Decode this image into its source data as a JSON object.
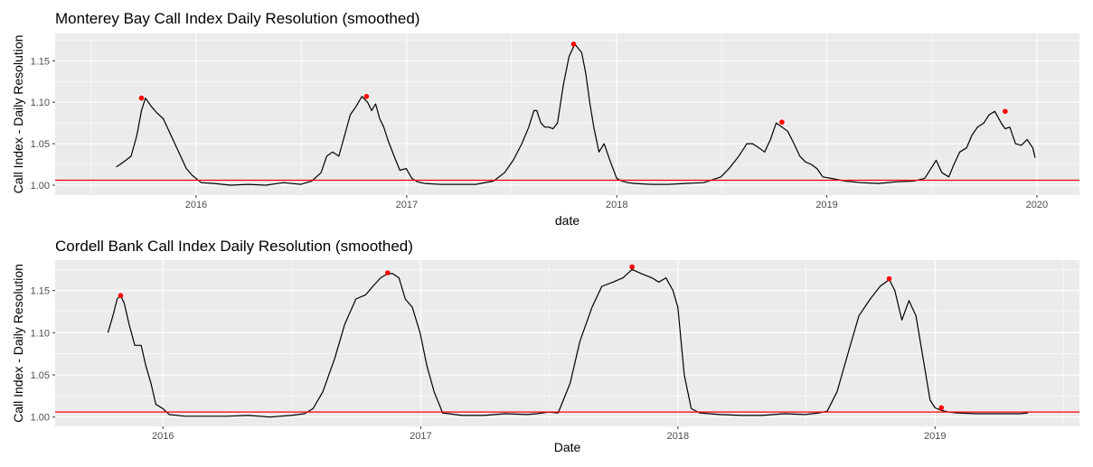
{
  "chart_data": [
    {
      "type": "line",
      "title": "Monterey Bay Call Index Daily Resolution (smoothed)",
      "xlabel": "date",
      "ylabel": "Call Index - Daily Resolution",
      "x_ticks": [
        "2016",
        "2017",
        "2018",
        "2019",
        "2020"
      ],
      "y_ticks": [
        "1.00",
        "1.05",
        "1.10",
        "1.15"
      ],
      "xlim": [
        "2015-05-01",
        "2020-03-15"
      ],
      "ylim": [
        0.988,
        1.183
      ],
      "reference_line": 1.006,
      "series": [
        {
          "color": "#000000",
          "x": [
            "2015-08-15",
            "2015-08-22",
            "2015-09-01",
            "2015-09-10",
            "2015-09-20",
            "2015-09-28",
            "2015-10-05",
            "2015-10-15",
            "2015-10-25",
            "2015-11-05",
            "2015-11-15",
            "2015-11-25",
            "2015-12-05",
            "2015-12-15",
            "2015-12-25",
            "2016-01-10",
            "2016-02-01",
            "2016-03-01",
            "2016-04-01",
            "2016-05-01",
            "2016-06-01",
            "2016-07-01",
            "2016-07-20",
            "2016-08-05",
            "2016-08-15",
            "2016-08-25",
            "2016-09-05",
            "2016-09-15",
            "2016-09-25",
            "2016-10-05",
            "2016-10-15",
            "2016-10-25",
            "2016-11-01",
            "2016-11-08",
            "2016-11-15",
            "2016-11-22",
            "2016-11-29",
            "2016-12-10",
            "2016-12-20",
            "2016-12-31",
            "2017-01-10",
            "2017-01-20",
            "2017-02-01",
            "2017-03-01",
            "2017-04-01",
            "2017-05-01",
            "2017-06-01",
            "2017-06-20",
            "2017-07-05",
            "2017-07-20",
            "2017-08-01",
            "2017-08-10",
            "2017-08-15",
            "2017-08-22",
            "2017-08-29",
            "2017-09-05",
            "2017-09-12",
            "2017-09-20",
            "2017-09-30",
            "2017-10-10",
            "2017-10-20",
            "2017-11-01",
            "2017-11-08",
            "2017-11-15",
            "2017-11-22",
            "2017-12-01",
            "2017-12-10",
            "2017-12-20",
            "2018-01-01",
            "2018-01-10",
            "2018-01-20",
            "2018-02-01",
            "2018-03-01",
            "2018-04-01",
            "2018-05-01",
            "2018-06-01",
            "2018-07-01",
            "2018-07-15",
            "2018-08-01",
            "2018-08-15",
            "2018-08-25",
            "2018-09-05",
            "2018-09-15",
            "2018-09-25",
            "2018-10-05",
            "2018-10-15",
            "2018-10-25",
            "2018-11-05",
            "2018-11-15",
            "2018-11-25",
            "2018-12-05",
            "2018-12-15",
            "2018-12-25",
            "2019-01-10",
            "2019-02-01",
            "2019-03-01",
            "2019-04-01",
            "2019-05-01",
            "2019-06-01",
            "2019-06-20",
            "2019-07-01",
            "2019-07-10",
            "2019-07-20",
            "2019-08-01",
            "2019-08-10",
            "2019-08-20",
            "2019-09-01",
            "2019-09-10",
            "2019-09-20",
            "2019-10-01",
            "2019-10-10",
            "2019-10-20",
            "2019-10-31",
            "2019-11-07",
            "2019-11-15",
            "2019-11-25",
            "2019-12-05",
            "2019-12-15",
            "2019-12-25",
            "2019-12-29"
          ],
          "y": [
            1.022,
            1.025,
            1.03,
            1.035,
            1.06,
            1.09,
            1.105,
            1.095,
            1.087,
            1.08,
            1.065,
            1.05,
            1.035,
            1.02,
            1.012,
            1.003,
            1.002,
            1.0,
            1.001,
            1.0,
            1.003,
            1.001,
            1.005,
            1.015,
            1.035,
            1.04,
            1.035,
            1.06,
            1.085,
            1.095,
            1.107,
            1.1,
            1.09,
            1.098,
            1.08,
            1.07,
            1.055,
            1.035,
            1.018,
            1.02,
            1.008,
            1.004,
            1.002,
            1.001,
            1.001,
            1.001,
            1.005,
            1.015,
            1.03,
            1.05,
            1.07,
            1.09,
            1.09,
            1.075,
            1.07,
            1.07,
            1.068,
            1.075,
            1.12,
            1.155,
            1.17,
            1.16,
            1.135,
            1.1,
            1.07,
            1.04,
            1.05,
            1.03,
            1.008,
            1.005,
            1.003,
            1.002,
            1.001,
            1.001,
            1.002,
            1.003,
            1.01,
            1.02,
            1.035,
            1.05,
            1.05,
            1.045,
            1.04,
            1.055,
            1.075,
            1.07,
            1.065,
            1.05,
            1.035,
            1.028,
            1.025,
            1.02,
            1.01,
            1.008,
            1.005,
            1.003,
            1.002,
            1.004,
            1.005,
            1.008,
            1.02,
            1.03,
            1.015,
            1.01,
            1.025,
            1.04,
            1.045,
            1.06,
            1.07,
            1.075,
            1.085,
            1.089,
            1.075,
            1.068,
            1.07,
            1.05,
            1.048,
            1.055,
            1.045,
            1.033
          ]
        }
      ],
      "peaks": {
        "color": "#ff0000",
        "x": [
          "2015-09-28",
          "2016-10-23",
          "2017-10-18",
          "2018-10-15",
          "2019-11-07"
        ],
        "y": [
          1.105,
          1.107,
          1.17,
          1.076,
          1.089
        ]
      }
    },
    {
      "type": "line",
      "title": "Cordell Bank Call Index Daily Resolution (smoothed)",
      "xlabel": "Date",
      "ylabel": "Call Index - Daily Resolution",
      "x_ticks": [
        "2016",
        "2017",
        "2018",
        "2019"
      ],
      "y_ticks": [
        "1.00",
        "1.05",
        "1.10",
        "1.15"
      ],
      "xlim": [
        "2015-08-01",
        "2019-07-25"
      ],
      "ylim": [
        0.989,
        1.186
      ],
      "reference_line": 1.006,
      "series": [
        {
          "color": "#000000",
          "x": [
            "2015-10-15",
            "2015-10-22",
            "2015-10-28",
            "2015-11-02",
            "2015-11-07",
            "2015-11-14",
            "2015-11-22",
            "2015-12-01",
            "2015-12-08",
            "2015-12-15",
            "2015-12-22",
            "2016-01-01",
            "2016-01-10",
            "2016-02-01",
            "2016-03-01",
            "2016-04-01",
            "2016-05-01",
            "2016-06-01",
            "2016-07-01",
            "2016-07-20",
            "2016-08-01",
            "2016-08-15",
            "2016-09-01",
            "2016-09-15",
            "2016-10-01",
            "2016-10-15",
            "2016-10-25",
            "2016-11-05",
            "2016-11-15",
            "2016-11-22",
            "2016-12-01",
            "2016-12-10",
            "2016-12-20",
            "2016-12-31",
            "2017-01-10",
            "2017-01-20",
            "2017-02-01",
            "2017-03-01",
            "2017-04-01",
            "2017-05-01",
            "2017-06-01",
            "2017-06-15",
            "2017-07-01",
            "2017-07-15",
            "2017-08-01",
            "2017-08-15",
            "2017-09-01",
            "2017-09-15",
            "2017-10-01",
            "2017-10-15",
            "2017-10-28",
            "2017-11-10",
            "2017-11-25",
            "2017-12-05",
            "2017-12-15",
            "2017-12-25",
            "2018-01-01",
            "2018-01-10",
            "2018-01-20",
            "2018-02-01",
            "2018-03-01",
            "2018-04-01",
            "2018-05-01",
            "2018-06-01",
            "2018-07-01",
            "2018-07-20",
            "2018-08-01",
            "2018-08-15",
            "2018-09-01",
            "2018-09-15",
            "2018-10-01",
            "2018-10-15",
            "2018-10-28",
            "2018-11-05",
            "2018-11-15",
            "2018-11-25",
            "2018-12-05",
            "2018-12-15",
            "2018-12-25",
            "2019-01-01",
            "2019-01-10",
            "2019-01-20",
            "2019-02-01",
            "2019-03-01",
            "2019-04-01",
            "2019-05-01",
            "2019-05-13"
          ],
          "y": [
            1.1,
            1.12,
            1.14,
            1.144,
            1.135,
            1.11,
            1.085,
            1.085,
            1.06,
            1.04,
            1.015,
            1.01,
            1.003,
            1.001,
            1.001,
            1.001,
            1.002,
            1.0,
            1.002,
            1.004,
            1.01,
            1.03,
            1.07,
            1.11,
            1.14,
            1.145,
            1.155,
            1.165,
            1.17,
            1.17,
            1.165,
            1.14,
            1.13,
            1.1,
            1.06,
            1.03,
            1.005,
            1.002,
            1.002,
            1.004,
            1.003,
            1.004,
            1.006,
            1.005,
            1.04,
            1.09,
            1.13,
            1.155,
            1.16,
            1.165,
            1.175,
            1.17,
            1.165,
            1.16,
            1.165,
            1.15,
            1.13,
            1.05,
            1.01,
            1.005,
            1.003,
            1.002,
            1.002,
            1.004,
            1.003,
            1.005,
            1.007,
            1.03,
            1.08,
            1.12,
            1.14,
            1.155,
            1.163,
            1.15,
            1.115,
            1.138,
            1.12,
            1.07,
            1.02,
            1.011,
            1.008,
            1.006,
            1.005,
            1.004,
            1.004,
            1.004,
            1.005
          ]
        }
      ],
      "peaks": {
        "color": "#ff0000",
        "x": [
          "2015-11-02",
          "2016-11-15",
          "2017-10-28",
          "2018-10-28",
          "2019-01-10"
        ],
        "y": [
          1.144,
          1.171,
          1.178,
          1.164,
          1.011
        ]
      }
    }
  ]
}
